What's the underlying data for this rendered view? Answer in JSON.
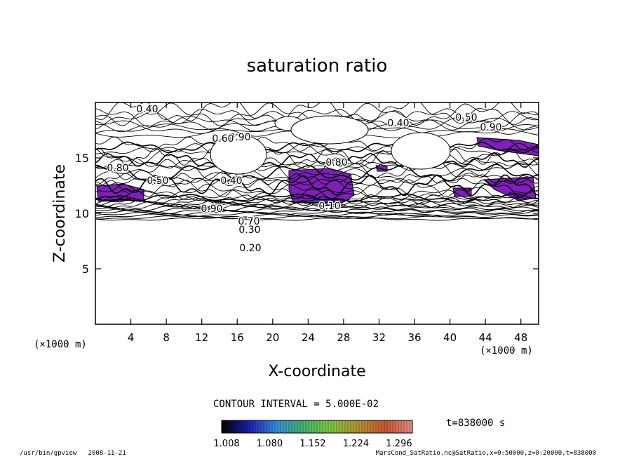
{
  "footer": {
    "program": "/usr/bin/gpview",
    "date": "2008-11-21",
    "source": "MarsCond_SatRatio.nc@SatRatio,x=0:50000,z=0:20000,t=838000"
  },
  "time_label": "t=838000 s",
  "contour_interval": "CONTOUR INTERVAL = 5.000E-02",
  "chart_data": {
    "type": "heatmap",
    "title": "saturation ratio",
    "xlabel": "X-coordinate",
    "ylabel": "Z-coordinate",
    "x_unit": "(×1000 m)",
    "z_unit": "(×1000 m)",
    "xlim": [
      0,
      50
    ],
    "ylim": [
      0,
      20
    ],
    "x_ticks": [
      4,
      8,
      12,
      16,
      20,
      24,
      28,
      32,
      36,
      40,
      44,
      48
    ],
    "y_ticks": [
      5,
      10,
      15
    ],
    "contour_labels": [
      "0.40",
      "0.40",
      "0.90",
      "0.60",
      "0.80",
      "0.40",
      "0.90",
      "0.70",
      "0.30",
      "0.20",
      "0.10",
      "0.80",
      "0.50",
      "0.90",
      "0.50"
    ],
    "shaded_regions_min_value": 1.008,
    "colorbar": {
      "ticks": [
        "1.008",
        "1.080",
        "1.152",
        "1.224",
        "1.296"
      ],
      "colors": [
        "#000000",
        "#1e1eb4",
        "#3c8cdc",
        "#46b46e",
        "#82c846",
        "#b49632",
        "#c85a32",
        "#e68c8c"
      ]
    }
  }
}
